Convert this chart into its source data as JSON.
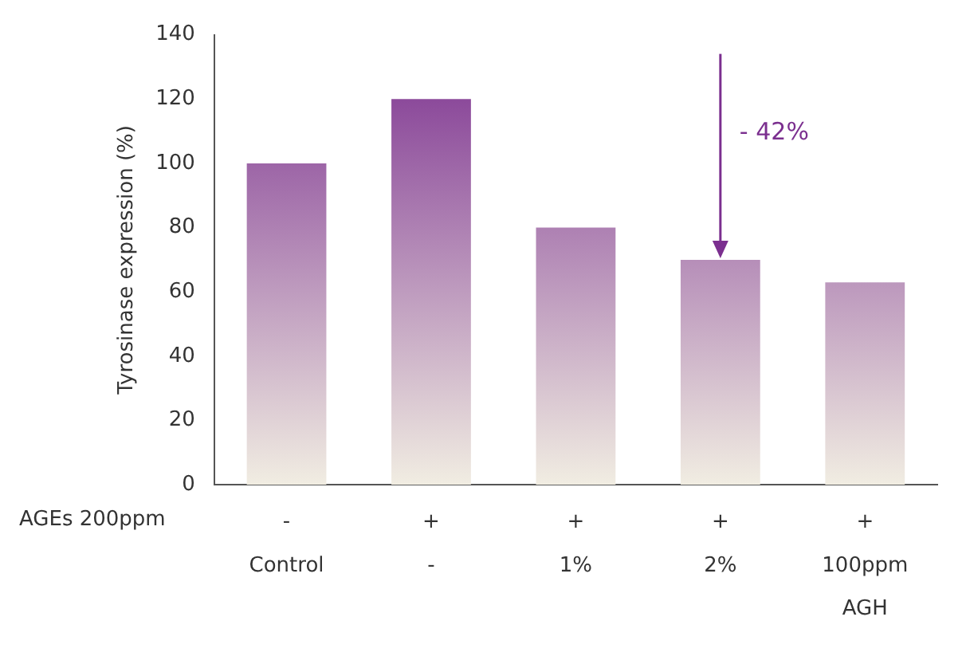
{
  "chart_data": {
    "type": "bar",
    "ylabel": "Tyrosinase expression (%)",
    "categories": [
      "-\nControl",
      "+\n-",
      "+\n1%",
      "+\n2%",
      "+\n100ppm\nAGH"
    ],
    "values": [
      100,
      120,
      80,
      70,
      63
    ],
    "color": "#7b2f8f",
    "ylim": [
      0,
      140
    ],
    "yticks": [
      0,
      20,
      40,
      60,
      80,
      100,
      120,
      140
    ],
    "grid": false,
    "legend": false,
    "annotations": [
      "AGEs 200ppm",
      "- 42%"
    ]
  }
}
